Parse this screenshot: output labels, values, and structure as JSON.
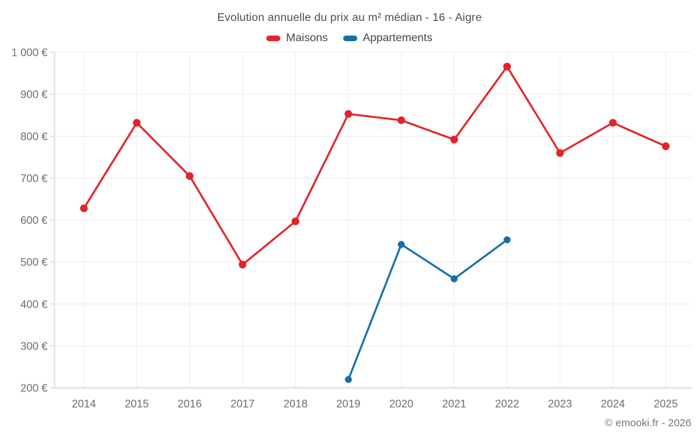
{
  "title": "Evolution annuelle du prix au m² médian - 16 - Aigre",
  "footer": "© emooki.fr - 2026",
  "chart_data": {
    "type": "line",
    "title": "Evolution annuelle du prix au m² médian - 16 - Aigre",
    "categories": [
      "2014",
      "2015",
      "2016",
      "2017",
      "2018",
      "2019",
      "2020",
      "2021",
      "2022",
      "2023",
      "2024",
      "2025"
    ],
    "series": [
      {
        "name": "Maisons",
        "color": "#e0252a",
        "values": [
          628,
          832,
          705,
          494,
          597,
          853,
          838,
          792,
          966,
          760,
          832,
          776
        ]
      },
      {
        "name": "Appartements",
        "color": "#176fa8",
        "values": [
          null,
          null,
          null,
          null,
          null,
          220,
          542,
          460,
          553,
          null,
          null,
          null
        ]
      }
    ],
    "xlabel": "",
    "ylabel": "",
    "ylim": [
      200,
      1000
    ],
    "ytick_step": 100,
    "ytick_suffix": " €",
    "grid": true,
    "legend_position": "top"
  }
}
